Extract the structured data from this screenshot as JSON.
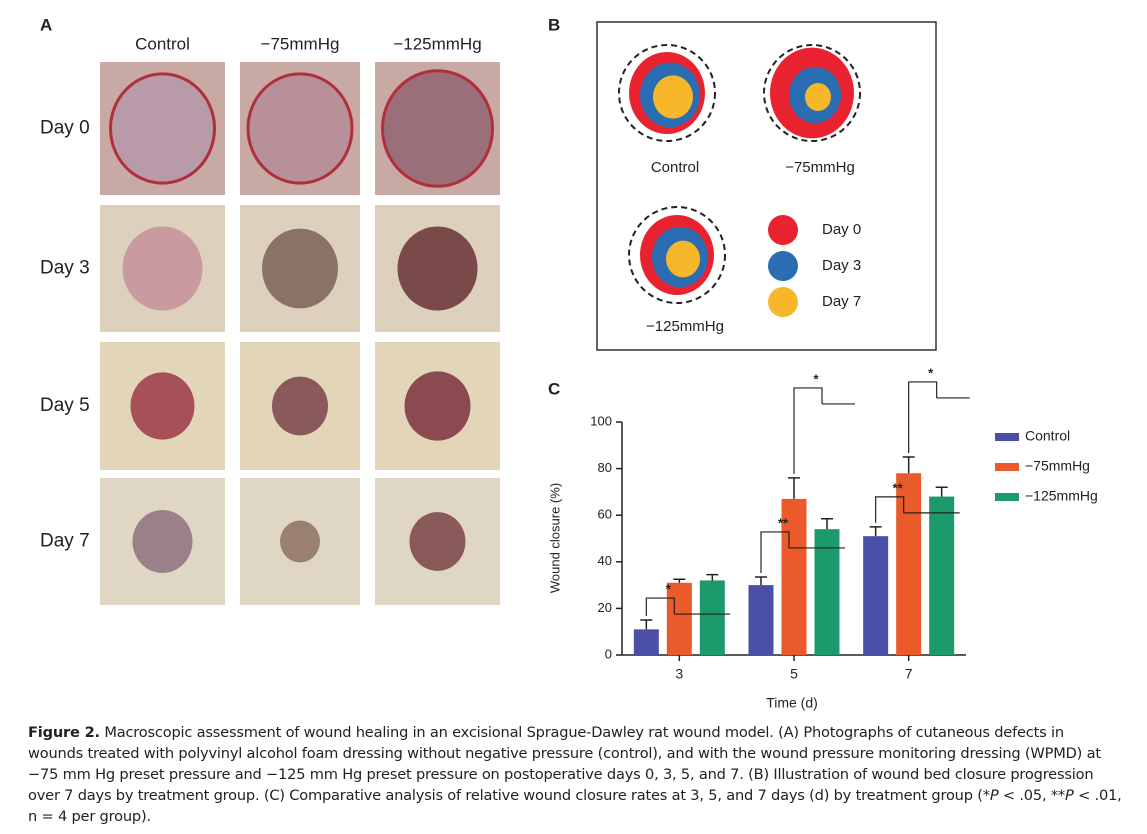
{
  "panel_a": {
    "letter": "A",
    "columns": [
      "Control",
      "−75mmHg",
      "−125mmHg"
    ],
    "rows": [
      "Day 0",
      "Day 3",
      "Day 5",
      "Day 7"
    ]
  },
  "panel_b": {
    "letter": "B",
    "groups": [
      "Control",
      "−75mmHg",
      "−125mmHg"
    ],
    "legend": [
      "Day 0",
      "Day 3",
      "Day 7"
    ]
  },
  "panel_c": {
    "letter": "C"
  },
  "chart_data": {
    "type": "bar",
    "xlabel": "Time (d)",
    "ylabel": "Wound closure (%)",
    "categories": [
      "3",
      "5",
      "7"
    ],
    "series": [
      {
        "name": "Control",
        "color": "#4b4fa6",
        "values": [
          11,
          30,
          51
        ],
        "errors": [
          4,
          3.5,
          4
        ]
      },
      {
        "name": "−75mmHg",
        "color": "#ea5a2a",
        "values": [
          31,
          67,
          78
        ],
        "errors": [
          1.5,
          9,
          7
        ]
      },
      {
        "name": "−125mmHg",
        "color": "#1d9a6c",
        "values": [
          32,
          54,
          68
        ],
        "errors": [
          2.5,
          4.5,
          4
        ]
      }
    ],
    "ylim": [
      0,
      100
    ],
    "yticks": [
      0,
      20,
      40,
      60,
      80,
      100
    ],
    "annotations": [
      "*",
      "**",
      "*",
      "**",
      "*"
    ]
  },
  "caption": [
    "Figure 2.",
    " Macroscopic assessment of wound healing in an excisional Sprague-Dawley rat wound model. (A) Photographs of cutaneous defects in wounds treated with polyvinyl alcohol foam dressing without negative pressure (control), and with the wound pressure monitoring dressing (WPMD) at −75 mm Hg preset pressure and −125 mm Hg preset pressure on postoperative days 0, 3, 5, and 7. (B) Illustration of wound bed closure progression over 7 days by treatment group. (C) Comparative analysis of relative wound closure rates at 3, 5, and 7 days (d) by treatment group (*",
    "P",
    " < .05, **",
    "P",
    " < .01, n = 4 per group)."
  ]
}
